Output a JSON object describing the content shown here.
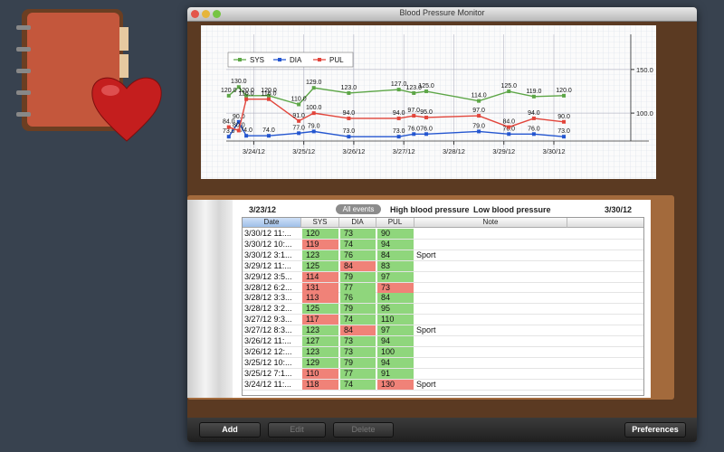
{
  "window": {
    "title": "Blood Pressure Monitor"
  },
  "chart_data": {
    "type": "line",
    "x": [
      23.5,
      23.7,
      23.85,
      24.3,
      24.9,
      25.2,
      25.9,
      26.9,
      27.2,
      27.45,
      28.5,
      29.1,
      29.6,
      30.2
    ],
    "xlim": [
      23.45,
      31.9
    ],
    "xticks": [
      {
        "value": 24,
        "label": "3/24/12"
      },
      {
        "value": 25,
        "label": "3/25/12"
      },
      {
        "value": 26,
        "label": "3/26/12"
      },
      {
        "value": 27,
        "label": "3/27/12"
      },
      {
        "value": 28,
        "label": "3/28/12"
      },
      {
        "value": 29,
        "label": "3/29/12"
      },
      {
        "value": 30,
        "label": "3/30/12"
      }
    ],
    "ylim": [
      68,
      180
    ],
    "yticks": [
      {
        "value": 100,
        "label": "100.0"
      },
      {
        "value": 150,
        "label": "150.0"
      }
    ],
    "grid": true,
    "legend": "upper left",
    "series": [
      {
        "name": "SYS",
        "color": "#5da647",
        "values": [
          120,
          130,
          120,
          120,
          110,
          129,
          123,
          127,
          123,
          125,
          114,
          125,
          119,
          120
        ],
        "value_labels": [
          "120.0",
          "130.0",
          "120.0",
          "120.0",
          "110.0",
          "129.0",
          "123.0",
          "127.0",
          "123.0",
          "125.0",
          "114.0",
          "125.0",
          "119.0",
          "120.0"
        ]
      },
      {
        "name": "DIA",
        "color": "#2456d0",
        "values": [
          73,
          90,
          74,
          74,
          77,
          79,
          73,
          73,
          76,
          76,
          79,
          76,
          76,
          73
        ],
        "value_labels": [
          "73.0",
          "90.0",
          "74.0",
          "74.0",
          "77.0",
          "79.0",
          "73.0",
          "73.0",
          "76.0",
          "76.0",
          "79.0",
          "76.0",
          "76.0",
          "73.0"
        ]
      },
      {
        "name": "PUL",
        "color": "#e2453b",
        "values": [
          84,
          80,
          116,
          116,
          91,
          100,
          94,
          94,
          97,
          95,
          97,
          84,
          94,
          90
        ],
        "value_labels": [
          "84.0",
          "80.0",
          "116.0",
          "116.0",
          "91.0",
          "100.0",
          "94.0",
          "94.0",
          "97.0",
          "95.0",
          "97.0",
          "84.0",
          "94.0",
          "90.0"
        ]
      }
    ]
  },
  "journal": {
    "start_date": "3/23/12",
    "end_date": "3/30/12",
    "filters": [
      "All events",
      "High blood pressure",
      "Low blood pressure"
    ],
    "columns": [
      "Date",
      "SYS",
      "DIA",
      "PUL",
      "Note"
    ],
    "rows": [
      {
        "date": "3/30/12 11:...",
        "sys": 120,
        "dia": 73,
        "pul": 90,
        "colors": [
          "#8fd67c",
          "#8fd67c",
          "#8fd67c"
        ]
      },
      {
        "date": "3/30/12 10:...",
        "sys": 119,
        "dia": 74,
        "pul": 94,
        "colors": [
          "#f08278",
          "#8fd67c",
          "#8fd67c"
        ]
      },
      {
        "date": "3/30/12 3:1...",
        "sys": 123,
        "dia": 76,
        "pul": 84,
        "note": "Sport",
        "colors": [
          "#8fd67c",
          "#8fd67c",
          "#8fd67c"
        ]
      },
      {
        "date": "3/29/12 11:...",
        "sys": 125,
        "dia": 84,
        "pul": 83,
        "colors": [
          "#8fd67c",
          "#f08278",
          "#8fd67c"
        ]
      },
      {
        "date": "3/29/12 3:5...",
        "sys": 114,
        "dia": 79,
        "pul": 97,
        "colors": [
          "#f08278",
          "#8fd67c",
          "#8fd67c"
        ]
      },
      {
        "date": "3/28/12 6:2...",
        "sys": 131,
        "dia": 77,
        "pul": 73,
        "colors": [
          "#f08278",
          "#8fd67c",
          "#f08278"
        ]
      },
      {
        "date": "3/28/12 3:3...",
        "sys": 113,
        "dia": 76,
        "pul": 84,
        "colors": [
          "#f08278",
          "#8fd67c",
          "#8fd67c"
        ]
      },
      {
        "date": "3/28/12 3:2...",
        "sys": 125,
        "dia": 79,
        "pul": 95,
        "colors": [
          "#8fd67c",
          "#8fd67c",
          "#8fd67c"
        ]
      },
      {
        "date": "3/27/12 9:3...",
        "sys": 117,
        "dia": 74,
        "pul": 110,
        "colors": [
          "#f08278",
          "#8fd67c",
          "#8fd67c"
        ]
      },
      {
        "date": "3/27/12 8:3...",
        "sys": 123,
        "dia": 84,
        "pul": 97,
        "note": "Sport",
        "colors": [
          "#8fd67c",
          "#f08278",
          "#8fd67c"
        ]
      },
      {
        "date": "3/26/12 11:...",
        "sys": 127,
        "dia": 73,
        "pul": 94,
        "colors": [
          "#8fd67c",
          "#8fd67c",
          "#8fd67c"
        ]
      },
      {
        "date": "3/26/12 12:...",
        "sys": 123,
        "dia": 73,
        "pul": 100,
        "colors": [
          "#8fd67c",
          "#8fd67c",
          "#8fd67c"
        ]
      },
      {
        "date": "3/25/12 10:...",
        "sys": 129,
        "dia": 79,
        "pul": 94,
        "colors": [
          "#8fd67c",
          "#8fd67c",
          "#8fd67c"
        ]
      },
      {
        "date": "3/25/12 7:1...",
        "sys": 110,
        "dia": 77,
        "pul": 91,
        "colors": [
          "#f08278",
          "#8fd67c",
          "#8fd67c"
        ]
      },
      {
        "date": "3/24/12 11:...",
        "sys": 118,
        "dia": 74,
        "pul": 130,
        "note": "Sport",
        "colors": [
          "#f08278",
          "#8fd67c",
          "#f08278"
        ]
      }
    ]
  },
  "toolbar": {
    "buttons": [
      "Add",
      "Edit",
      "Delete",
      "Preferences"
    ]
  }
}
